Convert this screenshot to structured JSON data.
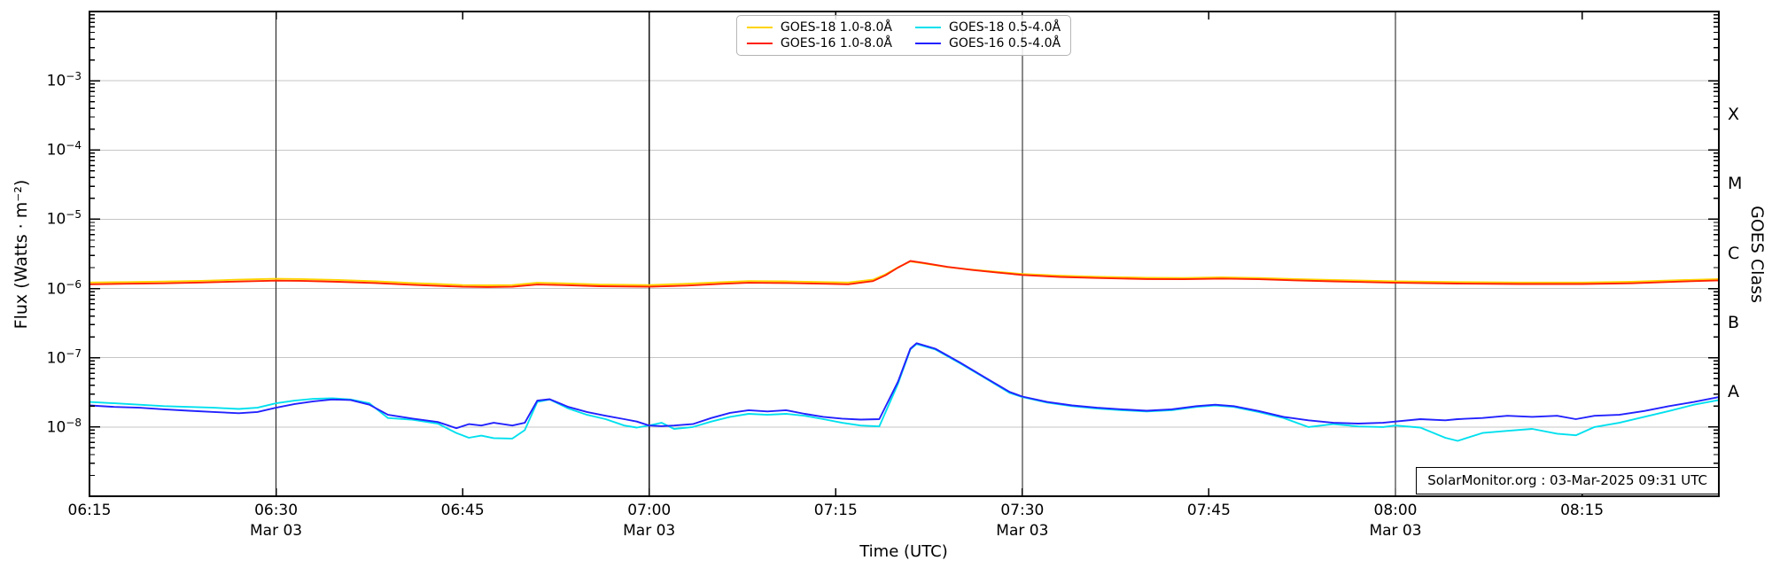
{
  "figure": {
    "y_axis_label": "Flux (Watts · m⁻²)",
    "x_axis_label": "Time (UTC)",
    "right_axis_label": "GOES Class",
    "annotation": "SolarMonitor.org : 03-Mar-2025 09:31 UTC"
  },
  "chart_data": {
    "type": "line",
    "title": "",
    "x_unit": "minutes after 06:15 UTC, 03-Mar-2025",
    "x_range_minutes": [
      0,
      131
    ],
    "y_scale": "log",
    "y_range": [
      1e-09,
      0.01
    ],
    "grid": {
      "horizontal_decades": true,
      "vertical_half_hours": true
    },
    "y_tick_exponents": [
      -3,
      -4,
      -5,
      -6,
      -7,
      -8
    ],
    "x_ticks": [
      {
        "min": 0,
        "label": "06:15",
        "sub": "",
        "gridline": false
      },
      {
        "min": 15,
        "label": "06:30",
        "sub": "Mar 03",
        "gridline": true
      },
      {
        "min": 30,
        "label": "06:45",
        "sub": "",
        "gridline": false
      },
      {
        "min": 45,
        "label": "07:00",
        "sub": "Mar 03",
        "gridline": true
      },
      {
        "min": 60,
        "label": "07:15",
        "sub": "",
        "gridline": false
      },
      {
        "min": 75,
        "label": "07:30",
        "sub": "Mar 03",
        "gridline": true
      },
      {
        "min": 90,
        "label": "07:45",
        "sub": "",
        "gridline": false
      },
      {
        "min": 105,
        "label": "08:00",
        "sub": "Mar 03",
        "gridline": true
      },
      {
        "min": 120,
        "label": "08:15",
        "sub": "",
        "gridline": false
      }
    ],
    "goes_classes": [
      {
        "label": "X",
        "mid_exponent": -3.5
      },
      {
        "label": "M",
        "mid_exponent": -4.5
      },
      {
        "label": "C",
        "mid_exponent": -5.5
      },
      {
        "label": "B",
        "mid_exponent": -6.5
      },
      {
        "label": "A",
        "mid_exponent": -7.5
      }
    ],
    "legend_position": "upper center",
    "legend_order": [
      0,
      2,
      1,
      3
    ],
    "series": [
      {
        "name": "GOES-18 1.0-8.0Å",
        "color": "#ffd400",
        "x": [
          0,
          3,
          6,
          9,
          12,
          15,
          17,
          20,
          23,
          26,
          28,
          30,
          32,
          34,
          36,
          38,
          41,
          45,
          48,
          51,
          53,
          56,
          59,
          61,
          63,
          64,
          65,
          66,
          67,
          69,
          71,
          73,
          75,
          78,
          81,
          85,
          88,
          91,
          94,
          97,
          100,
          105,
          110,
          115,
          120,
          124,
          128,
          131
        ],
        "y": [
          1.22e-06,
          1.24e-06,
          1.26e-06,
          1.29e-06,
          1.34e-06,
          1.38e-06,
          1.37e-06,
          1.33e-06,
          1.27e-06,
          1.2e-06,
          1.16e-06,
          1.12e-06,
          1.11e-06,
          1.12e-06,
          1.21e-06,
          1.19e-06,
          1.14e-06,
          1.12e-06,
          1.17e-06,
          1.24e-06,
          1.28e-06,
          1.27e-06,
          1.24e-06,
          1.22e-06,
          1.34e-06,
          1.6e-06,
          2.02e-06,
          2.46e-06,
          2.32e-06,
          2.04e-06,
          1.87e-06,
          1.74e-06,
          1.62e-06,
          1.53e-06,
          1.48e-06,
          1.43e-06,
          1.42e-06,
          1.45e-06,
          1.42e-06,
          1.37e-06,
          1.33e-06,
          1.27e-06,
          1.24e-06,
          1.22e-06,
          1.22e-06,
          1.25e-06,
          1.32e-06,
          1.37e-06
        ]
      },
      {
        "name": "GOES-16 1.0-8.0Å",
        "color": "#ff2000",
        "x": [
          0,
          3,
          6,
          9,
          12,
          15,
          17,
          20,
          23,
          26,
          28,
          30,
          32,
          34,
          36,
          38,
          41,
          45,
          48,
          51,
          53,
          56,
          59,
          61,
          63,
          64,
          65,
          66,
          67,
          69,
          71,
          73,
          75,
          78,
          81,
          85,
          88,
          91,
          94,
          97,
          100,
          105,
          110,
          115,
          120,
          124,
          128,
          131
        ],
        "y": [
          1.15e-06,
          1.17e-06,
          1.19e-06,
          1.22e-06,
          1.26e-06,
          1.3e-06,
          1.29e-06,
          1.25e-06,
          1.2e-06,
          1.13e-06,
          1.09e-06,
          1.06e-06,
          1.05e-06,
          1.06e-06,
          1.14e-06,
          1.12e-06,
          1.08e-06,
          1.06e-06,
          1.1e-06,
          1.17e-06,
          1.21e-06,
          1.2e-06,
          1.17e-06,
          1.15e-06,
          1.28e-06,
          1.55e-06,
          2e-06,
          2.5e-06,
          2.35e-06,
          2.05e-06,
          1.85e-06,
          1.7e-06,
          1.57e-06,
          1.47e-06,
          1.42e-06,
          1.37e-06,
          1.36e-06,
          1.39e-06,
          1.36e-06,
          1.31e-06,
          1.27e-06,
          1.21e-06,
          1.18e-06,
          1.16e-06,
          1.16e-06,
          1.19e-06,
          1.26e-06,
          1.31e-06
        ]
      },
      {
        "name": "GOES-18 0.5-4.0Å",
        "color": "#00e0ee",
        "x": [
          0,
          2,
          4,
          6,
          8,
          10,
          12,
          13.5,
          15,
          16.5,
          18,
          19.5,
          21,
          22.5,
          24,
          26,
          28,
          29.5,
          30.5,
          31.5,
          32.5,
          34,
          35,
          36,
          37,
          38.5,
          40,
          41.5,
          43,
          44,
          45,
          46,
          47,
          48.5,
          50,
          51.5,
          53,
          54.5,
          56,
          57.5,
          59,
          60.5,
          62,
          63.5,
          65,
          66,
          66.5,
          68,
          70,
          72,
          74,
          75,
          77,
          79,
          81,
          83,
          85,
          87,
          89,
          90.5,
          92,
          94,
          96,
          98,
          100,
          102,
          104,
          105,
          107,
          109,
          110,
          112,
          114,
          116,
          118,
          119.5,
          121,
          123,
          125,
          127,
          129,
          131
        ],
        "y": [
          2.3e-08,
          2.2e-08,
          2.1e-08,
          2e-08,
          1.95e-08,
          1.9e-08,
          1.82e-08,
          1.9e-08,
          2.2e-08,
          2.4e-08,
          2.55e-08,
          2.6e-08,
          2.5e-08,
          2.2e-08,
          1.35e-08,
          1.27e-08,
          1.12e-08,
          8.2e-09,
          7e-09,
          7.5e-09,
          6.9e-09,
          6.8e-09,
          9e-09,
          2.3e-08,
          2.5e-08,
          1.85e-08,
          1.5e-08,
          1.3e-08,
          1.05e-08,
          9.8e-09,
          1.05e-08,
          1.15e-08,
          9.4e-09,
          1e-08,
          1.2e-08,
          1.4e-08,
          1.55e-08,
          1.5e-08,
          1.55e-08,
          1.45e-08,
          1.3e-08,
          1.15e-08,
          1.05e-08,
          1.02e-08,
          4.2e-08,
          1.32e-07,
          1.58e-07,
          1.32e-07,
          8.3e-08,
          5.1e-08,
          3.1e-08,
          2.7e-08,
          2.25e-08,
          2e-08,
          1.85e-08,
          1.75e-08,
          1.68e-08,
          1.75e-08,
          1.95e-08,
          2.05e-08,
          1.95e-08,
          1.65e-08,
          1.35e-08,
          1e-08,
          1.1e-08,
          1.02e-08,
          1e-08,
          1.05e-08,
          9.8e-09,
          7e-09,
          6.3e-09,
          8.2e-09,
          8.8e-09,
          9.4e-09,
          8e-09,
          7.6e-09,
          1e-08,
          1.15e-08,
          1.4e-08,
          1.7e-08,
          2.1e-08,
          2.45e-08
        ]
      },
      {
        "name": "GOES-16 0.5-4.0Å",
        "color": "#2222ff",
        "x": [
          0,
          2,
          4,
          6,
          8,
          10,
          12,
          13.5,
          15,
          16.5,
          18,
          19.5,
          21,
          22.5,
          24,
          26,
          28,
          29.5,
          30.5,
          31.5,
          32.5,
          34,
          35,
          36,
          37,
          38.5,
          40,
          41.5,
          43,
          44,
          45,
          46,
          47,
          48.5,
          50,
          51.5,
          53,
          54.5,
          56,
          57.5,
          59,
          60.5,
          62,
          63.5,
          65,
          66,
          66.5,
          68,
          70,
          72,
          74,
          75,
          77,
          79,
          81,
          83,
          85,
          87,
          89,
          90.5,
          92,
          94,
          96,
          98,
          100,
          102,
          104,
          105,
          107,
          109,
          110,
          112,
          114,
          116,
          118,
          119.5,
          121,
          123,
          125,
          127,
          129,
          131
        ],
        "y": [
          2.05e-08,
          1.95e-08,
          1.9e-08,
          1.8e-08,
          1.72e-08,
          1.65e-08,
          1.58e-08,
          1.65e-08,
          1.9e-08,
          2.15e-08,
          2.35e-08,
          2.5e-08,
          2.45e-08,
          2.1e-08,
          1.5e-08,
          1.32e-08,
          1.18e-08,
          9.6e-09,
          1.1e-08,
          1.05e-08,
          1.15e-08,
          1.05e-08,
          1.15e-08,
          2.4e-08,
          2.52e-08,
          1.95e-08,
          1.65e-08,
          1.45e-08,
          1.3e-08,
          1.2e-08,
          1.05e-08,
          1.03e-08,
          1.05e-08,
          1.1e-08,
          1.35e-08,
          1.6e-08,
          1.75e-08,
          1.68e-08,
          1.75e-08,
          1.55e-08,
          1.4e-08,
          1.32e-08,
          1.28e-08,
          1.3e-08,
          4.5e-08,
          1.35e-07,
          1.62e-07,
          1.35e-07,
          8.5e-08,
          5.2e-08,
          3.2e-08,
          2.75e-08,
          2.3e-08,
          2.05e-08,
          1.9e-08,
          1.8e-08,
          1.72e-08,
          1.8e-08,
          2e-08,
          2.1e-08,
          2e-08,
          1.7e-08,
          1.4e-08,
          1.25e-08,
          1.15e-08,
          1.12e-08,
          1.15e-08,
          1.2e-08,
          1.3e-08,
          1.25e-08,
          1.3e-08,
          1.35e-08,
          1.45e-08,
          1.4e-08,
          1.45e-08,
          1.3e-08,
          1.45e-08,
          1.5e-08,
          1.7e-08,
          2e-08,
          2.3e-08,
          2.7e-08
        ]
      }
    ],
    "colors": {
      "decade_gridline": "#c6c6c6",
      "halfhour_gridline": "#141414",
      "spine": "#000000"
    }
  }
}
